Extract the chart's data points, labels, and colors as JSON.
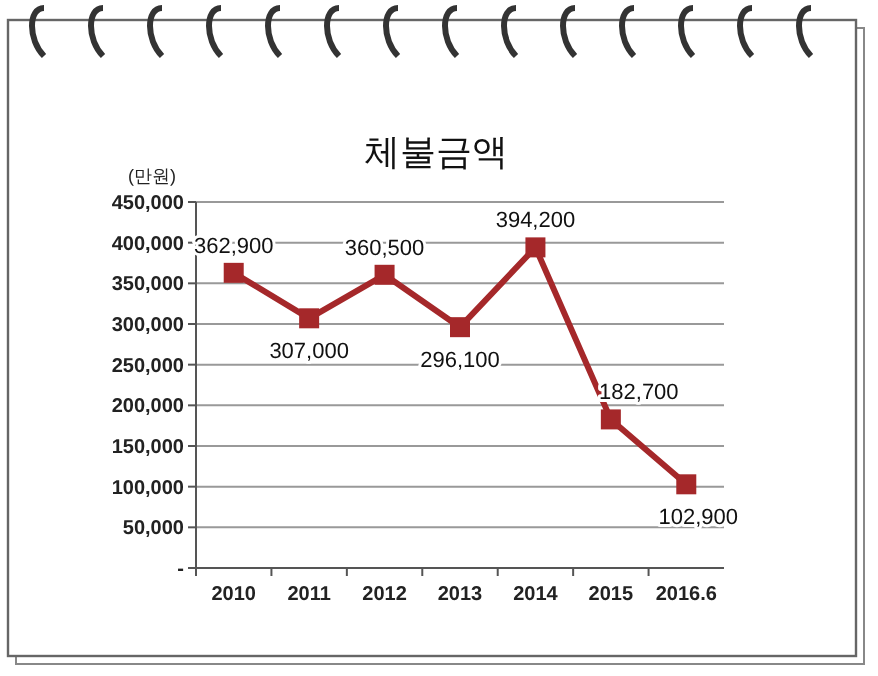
{
  "chart_data": {
    "type": "line",
    "title": "체불금액",
    "ylabel": "(만원)",
    "categories": [
      "2010",
      "2011",
      "2012",
      "2013",
      "2014",
      "2015",
      "2016.6"
    ],
    "series": [
      {
        "color": "#a5282a",
        "values": [
          362900,
          307000,
          360500,
          296100,
          394200,
          182700,
          102900
        ],
        "value_labels": [
          "362,900",
          "307,000",
          "360,500",
          "296,100",
          "394,200",
          "182,700",
          "102,900"
        ]
      }
    ],
    "ylim": [
      0,
      450000
    ],
    "yticks": [
      {
        "value": 0,
        "label": "-"
      },
      {
        "value": 50000,
        "label": "50,000"
      },
      {
        "value": 100000,
        "label": "100,000"
      },
      {
        "value": 150000,
        "label": "150,000"
      },
      {
        "value": 200000,
        "label": "200,000"
      },
      {
        "value": 250000,
        "label": "250,000"
      },
      {
        "value": 300000,
        "label": "300,000"
      },
      {
        "value": 350000,
        "label": "350,000"
      },
      {
        "value": 400000,
        "label": "400,000"
      },
      {
        "value": 450000,
        "label": "450,000"
      }
    ],
    "grid": "y",
    "marker": "square",
    "line_style": "solid"
  }
}
